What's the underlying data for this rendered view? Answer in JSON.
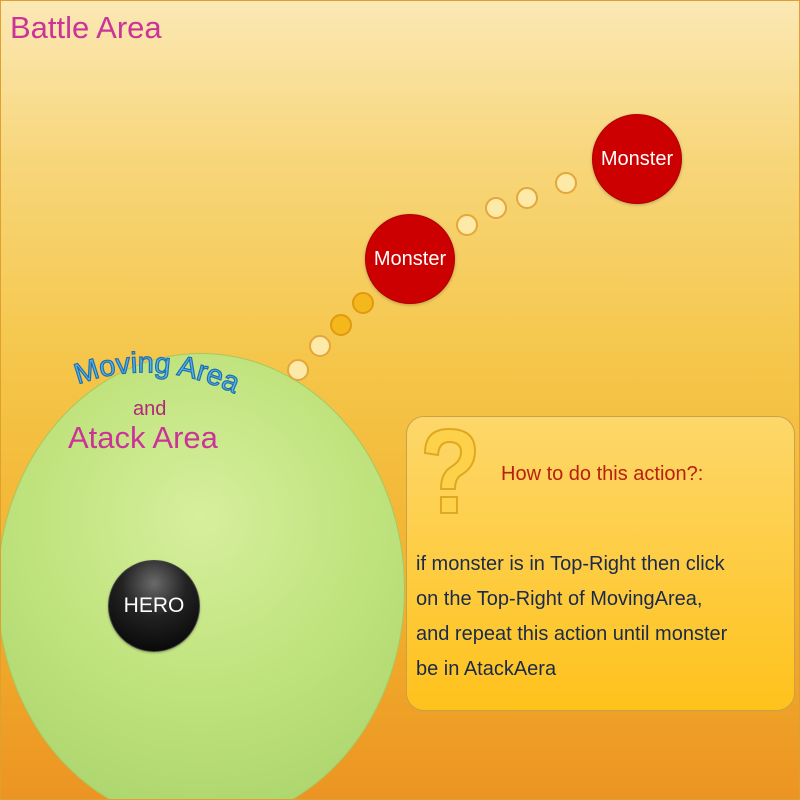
{
  "battle_area": {
    "title": "Battle Area"
  },
  "moving_area": {
    "title": "Moving Area",
    "conjunction": "and",
    "subtitle": "Atack Area"
  },
  "hero": {
    "label": "HERO"
  },
  "monsters": [
    {
      "label": "Monster"
    },
    {
      "label": "Monster"
    }
  ],
  "help_panel": {
    "icon": "question-mark-icon",
    "heading": "How to do this action?:",
    "lines": [
      "if monster is in Top-Right then click",
      "on the Top-Right of MovingArea,",
      "and repeat this action until monster",
      "be in AtackAera"
    ]
  },
  "colors": {
    "battle_title": "#cc3399",
    "moving_title": "#2f7fbf",
    "monster": "#cc0000",
    "hero": "#000000",
    "heading": "#b82010"
  }
}
